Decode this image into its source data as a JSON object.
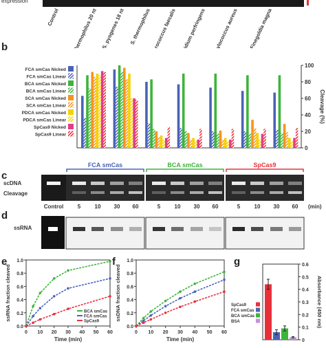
{
  "top_strip": {
    "label_partial": "expression",
    "lanes": [
      "Control",
      "S. thermophilus 20 nt",
      "S. pyogenes 18 nt",
      "S. thermophilus",
      "Enterococcus faecalis",
      "Clostridium perfringens",
      "Staphylococcus aureus",
      "Finegoldia magna"
    ]
  },
  "panel_labels": {
    "b": "b",
    "c": "c",
    "d": "d",
    "e": "e",
    "f": "f",
    "g": "g"
  },
  "colors": {
    "fca_blue": "#4a63b8",
    "bca_green": "#3db43a",
    "spcas9_red": "#e8303a",
    "orange": "#f7941d",
    "yellow": "#f5d200",
    "pink": "#e23c8a",
    "gray": "#b0b0b0",
    "violet": "#c890d8"
  },
  "chart_data": [
    {
      "id": "b",
      "type": "bar",
      "ylabel": "Cleavage (%)",
      "ylim": [
        0,
        100
      ],
      "yticks": [
        0,
        20,
        40,
        60,
        80,
        100
      ],
      "legend_position": "left",
      "categories": [
        "S. thermophilus 20 nt",
        "S. pyogenes 18 nt",
        "S. thermophilus",
        "Enterococcus faecalis",
        "Clostridium perfringens",
        "Staphylococcus aureus",
        "Finegoldia magna"
      ],
      "series": [
        {
          "name": "FCA smCas Nicked",
          "color": "#4a63b8",
          "pattern": "solid",
          "values": [
            63,
            95,
            80,
            77,
            73,
            69,
            67
          ]
        },
        {
          "name": "FCA smCas Linear",
          "color": "#4a63b8",
          "pattern": "hatch",
          "values": [
            36,
            74,
            30,
            24,
            20,
            20,
            22
          ]
        },
        {
          "name": "BCA smCas Nicked",
          "color": "#3db43a",
          "pattern": "solid",
          "values": [
            88,
            100,
            83,
            90,
            90,
            88,
            88
          ]
        },
        {
          "name": "BCA smCas Linear",
          "color": "#3db43a",
          "pattern": "hatch",
          "values": [
            72,
            92,
            23,
            20,
            17,
            17,
            18
          ]
        },
        {
          "name": "SCA smCas Nicked",
          "color": "#f7941d",
          "pattern": "solid",
          "values": [
            92,
            97,
            20,
            18,
            21,
            34,
            29
          ]
        },
        {
          "name": "SCA smCas Linear",
          "color": "#f7941d",
          "pattern": "hatch",
          "values": [
            86,
            83,
            13,
            10,
            10,
            24,
            19
          ]
        },
        {
          "name": "PDCA smCas Nicked",
          "color": "#f5d200",
          "pattern": "solid",
          "values": [
            90,
            90,
            15,
            12,
            12,
            18,
            12
          ]
        },
        {
          "name": "PDCA smCas Linear",
          "color": "#f5d200",
          "pattern": "hatch",
          "values": [
            88,
            60,
            10,
            9,
            8,
            10,
            8
          ]
        },
        {
          "name": "SpCas9 Nicked",
          "color": "#e23c8a",
          "pattern": "solid",
          "values": [
            93,
            60,
            12,
            10,
            10,
            17,
            12
          ]
        },
        {
          "name": "SpCas9 Linear",
          "color": "#e8303a",
          "pattern": "hatch",
          "values": [
            92,
            58,
            25,
            23,
            23,
            23,
            24
          ]
        }
      ]
    },
    {
      "id": "e",
      "type": "line",
      "xlabel": "Time (min)",
      "ylabel": "ssRNA fraction cleaved",
      "xlim": [
        0,
        60
      ],
      "ylim": [
        0,
        1
      ],
      "xticks": [
        0,
        10,
        20,
        30,
        40,
        50,
        60
      ],
      "yticks": [
        0.0,
        0.2,
        0.4,
        0.6,
        0.8,
        1.0
      ],
      "legend_position": "lower right",
      "series": [
        {
          "name": "BCA smCas",
          "color": "#3db43a",
          "x": [
            0,
            5,
            10,
            20,
            30,
            60
          ],
          "y": [
            0,
            0.3,
            0.5,
            0.72,
            0.84,
            0.98
          ]
        },
        {
          "name": "FCA smCas",
          "color": "#4a63b8",
          "x": [
            0,
            5,
            10,
            20,
            30,
            60
          ],
          "y": [
            0,
            0.15,
            0.27,
            0.45,
            0.57,
            0.72
          ]
        },
        {
          "name": "SpCas9",
          "color": "#e8303a",
          "x": [
            0,
            5,
            10,
            20,
            30,
            60
          ],
          "y": [
            0,
            0.05,
            0.1,
            0.18,
            0.26,
            0.45
          ]
        }
      ]
    },
    {
      "id": "f",
      "type": "line",
      "xlabel": "Time (min)",
      "ylabel": "ssDNA fraction cleaved",
      "xlim": [
        0,
        60
      ],
      "ylim": [
        0,
        1
      ],
      "xticks": [
        0,
        10,
        20,
        30,
        40,
        50,
        60
      ],
      "yticks": [
        0.0,
        0.2,
        0.4,
        0.6,
        0.8,
        1.0
      ],
      "series": [
        {
          "name": "BCA smCas",
          "color": "#3db43a",
          "x": [
            0,
            5,
            10,
            20,
            30,
            40,
            60
          ],
          "y": [
            0,
            0.12,
            0.22,
            0.38,
            0.52,
            0.64,
            0.82
          ]
        },
        {
          "name": "FCA smCas",
          "color": "#4a63b8",
          "x": [
            0,
            5,
            10,
            20,
            30,
            40,
            60
          ],
          "y": [
            0,
            0.08,
            0.16,
            0.3,
            0.42,
            0.52,
            0.7
          ]
        },
        {
          "name": "SpCas9",
          "color": "#e8303a",
          "x": [
            0,
            5,
            10,
            20,
            30,
            40,
            60
          ],
          "y": [
            0,
            0.05,
            0.1,
            0.2,
            0.29,
            0.37,
            0.52
          ]
        }
      ]
    },
    {
      "id": "g",
      "type": "bar",
      "ylabel": "Absorbance (450 nm)",
      "ylim": [
        0,
        0.6
      ],
      "yticks": [
        0,
        0.1,
        0.2,
        0.3,
        0.4,
        0.5,
        0.6
      ],
      "legend_position": "left",
      "categories": [
        "SpCas9",
        "FCA smCas",
        "BCA smCas",
        "BSA"
      ],
      "values": [
        0.44,
        0.06,
        0.09,
        0.02
      ],
      "errors": [
        0.04,
        0.02,
        0.02,
        0.005
      ],
      "colors": [
        "#e8303a",
        "#4a63b8",
        "#3db43a",
        "#c890d8"
      ]
    }
  ],
  "gel_c": {
    "groups": [
      "FCA smCas",
      "BCA smCas",
      "SpCas9"
    ],
    "group_colors": [
      "#4a63b8",
      "#3db43a",
      "#e8303a"
    ],
    "band_labels": [
      "scDNA",
      "Cleavage"
    ],
    "lanes": [
      "Control",
      "5",
      "10",
      "30",
      "60",
      "5",
      "10",
      "30",
      "60",
      "5",
      "10",
      "30",
      "60"
    ],
    "unit": "(min)"
  },
  "gel_d": {
    "band_label": "ssRNA"
  }
}
